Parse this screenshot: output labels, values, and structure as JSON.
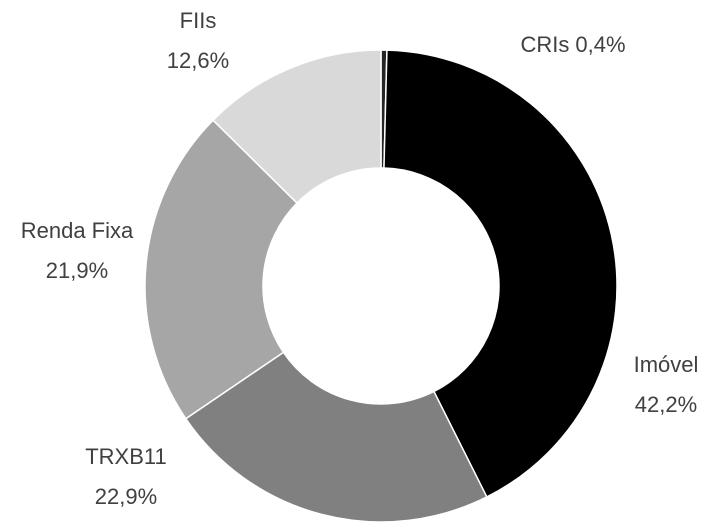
{
  "chart_data": {
    "type": "donut",
    "categories": [
      "CRIs",
      "Imóvel",
      "TRXB11",
      "Renda Fixa",
      "FIIs"
    ],
    "values": [
      0.4,
      42.2,
      22.9,
      21.9,
      12.6
    ],
    "value_labels": [
      "0,4%",
      "42,2%",
      "22,9%",
      "21,9%",
      "12,6%"
    ],
    "colors": [
      "#262626",
      "#000000",
      "#808080",
      "#a6a6a6",
      "#d9d9d9"
    ]
  }
}
